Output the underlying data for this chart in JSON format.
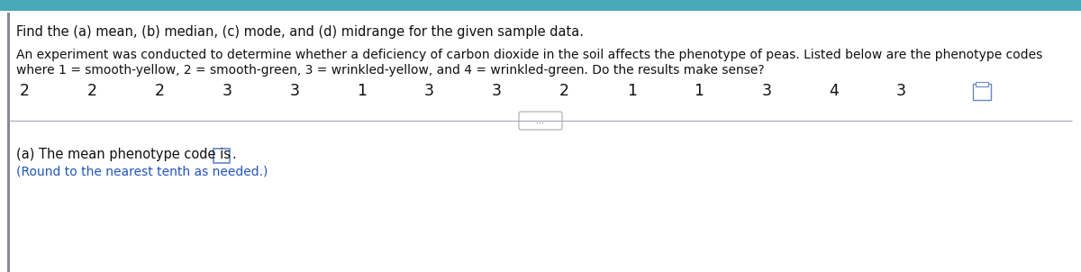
{
  "title_line1": "Find the (a) mean, (b) median, (c) mode, and (d) midrange for the given sample data.",
  "body_line1": "An experiment was conducted to determine whether a deficiency of carbon dioxide in the soil affects the phenotype of peas. Listed below are the phenotype codes",
  "body_line2": "where 1 = smooth-yellow, 2 = smooth-green, 3 = wrinkled-yellow, and 4 = wrinkled-green. Do the results make sense?",
  "data_values": [
    "2",
    "2",
    "2",
    "3",
    "3",
    "1",
    "3",
    "3",
    "2",
    "1",
    "1",
    "3",
    "4",
    "3"
  ],
  "answer_line1": "(a) The mean phenotype code is",
  "answer_line2": "(Round to the nearest tenth as needed.)",
  "ellipsis_label": "...",
  "header_color": "#4aa8b8",
  "background_color": "#ffffff",
  "text_color_black": "#111111",
  "answer_blue": "#2255bb",
  "divider_color": "#aaaacc",
  "icon_color": "#6688cc",
  "font_size_title": 10.5,
  "font_size_body": 10.0,
  "font_size_data": 12.5,
  "font_size_answer": 10.5,
  "font_size_answer_sub": 10.0,
  "left_bar_color": "#888899"
}
